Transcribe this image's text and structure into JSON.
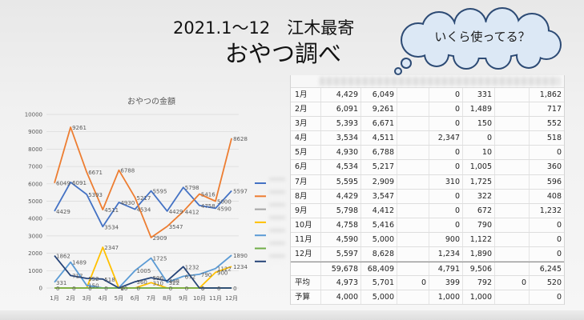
{
  "title": {
    "line1": "2021.1～12　江木最寄",
    "line2": "おやつ調べ"
  },
  "bubble": {
    "text": "いくら使ってる？",
    "fill_color": "#dce8f5",
    "outline_color": "#2c4a74"
  },
  "chart_data": {
    "type": "line",
    "title": "おやつの金額",
    "xlabel": "",
    "ylabel": "",
    "categories": [
      "1月",
      "2月",
      "3月",
      "4月",
      "5月",
      "6月",
      "7月",
      "8月",
      "9月",
      "10月",
      "11月",
      "12月"
    ],
    "ylim": [
      0,
      10000
    ],
    "yticks": [
      0,
      1000,
      2000,
      3000,
      4000,
      5000,
      6000,
      7000,
      8000,
      9000,
      10000
    ],
    "grid": true,
    "legend": "right",
    "series": [
      {
        "color": "#4472c4",
        "data_labels": true,
        "values": [
          4429,
          6091,
          5393,
          3534,
          4930,
          4534,
          5595,
          4429,
          5798,
          4758,
          4590,
          5597
        ]
      },
      {
        "color": "#ed7d31",
        "data_labels": true,
        "values": [
          6049,
          9261,
          6671,
          4511,
          6788,
          5217,
          2909,
          3547,
          4412,
          5416,
          5000,
          8628
        ]
      },
      {
        "color": "#a5a5a5",
        "data_labels": false,
        "values": [
          0,
          0,
          0,
          0,
          0,
          0,
          0,
          0,
          0,
          0,
          0,
          0
        ]
      },
      {
        "color": "#ffc000",
        "data_labels": true,
        "values": [
          0,
          0,
          0,
          2347,
          0,
          0,
          310,
          0,
          0,
          0,
          900,
          1234
        ]
      },
      {
        "color": "#5b9bd5",
        "data_labels": true,
        "values": [
          331,
          1489,
          150,
          0,
          10,
          1005,
          1725,
          322,
          672,
          790,
          1122,
          1890
        ]
      },
      {
        "color": "#70ad47",
        "data_labels": false,
        "values": [
          0,
          0,
          0,
          0,
          0,
          0,
          0,
          0,
          0,
          0,
          0,
          0
        ]
      },
      {
        "color": "#264478",
        "data_labels": true,
        "values": [
          1862,
          717,
          552,
          518,
          0,
          360,
          596,
          408,
          1232,
          0,
          0,
          0
        ]
      }
    ]
  },
  "table": {
    "rows": [
      {
        "label": "1月",
        "cells": [
          "4,429",
          "6,049",
          "",
          "0",
          "331",
          "",
          "1,862"
        ]
      },
      {
        "label": "2月",
        "cells": [
          "6,091",
          "9,261",
          "",
          "0",
          "1,489",
          "",
          "717"
        ]
      },
      {
        "label": "3月",
        "cells": [
          "5,393",
          "6,671",
          "",
          "0",
          "150",
          "",
          "552"
        ]
      },
      {
        "label": "4月",
        "cells": [
          "3,534",
          "4,511",
          "",
          "2,347",
          "0",
          "",
          "518"
        ]
      },
      {
        "label": "5月",
        "cells": [
          "4,930",
          "6,788",
          "",
          "0",
          "10",
          "",
          "0"
        ]
      },
      {
        "label": "6月",
        "cells": [
          "4,534",
          "5,217",
          "",
          "0",
          "1,005",
          "",
          "360"
        ]
      },
      {
        "label": "7月",
        "cells": [
          "5,595",
          "2,909",
          "",
          "310",
          "1,725",
          "",
          "596"
        ]
      },
      {
        "label": "8月",
        "cells": [
          "4,429",
          "3,547",
          "",
          "0",
          "322",
          "",
          "408"
        ]
      },
      {
        "label": "9月",
        "cells": [
          "5,798",
          "4,412",
          "",
          "0",
          "672",
          "",
          "1,232"
        ]
      },
      {
        "label": "10月",
        "cells": [
          "4,758",
          "5,416",
          "",
          "0",
          "790",
          "",
          "0"
        ]
      },
      {
        "label": "11月",
        "cells": [
          "4,590",
          "5,000",
          "",
          "900",
          "1,122",
          "",
          "0"
        ]
      },
      {
        "label": "12月",
        "cells": [
          "5,597",
          "8,628",
          "",
          "1,234",
          "1,890",
          "",
          "0"
        ]
      }
    ],
    "total": {
      "label": "",
      "cells": [
        "59,678",
        "68,409",
        "",
        "4,791",
        "9,506",
        "",
        "6,245"
      ]
    },
    "average": {
      "label": "平均",
      "cells": [
        "4,973",
        "5,701",
        "0",
        "399",
        "792",
        "0",
        "520"
      ]
    },
    "budget": {
      "label": "予算",
      "cells": [
        "4,000",
        "5,000",
        "",
        "1,000",
        "1,000",
        "",
        "0"
      ]
    }
  }
}
